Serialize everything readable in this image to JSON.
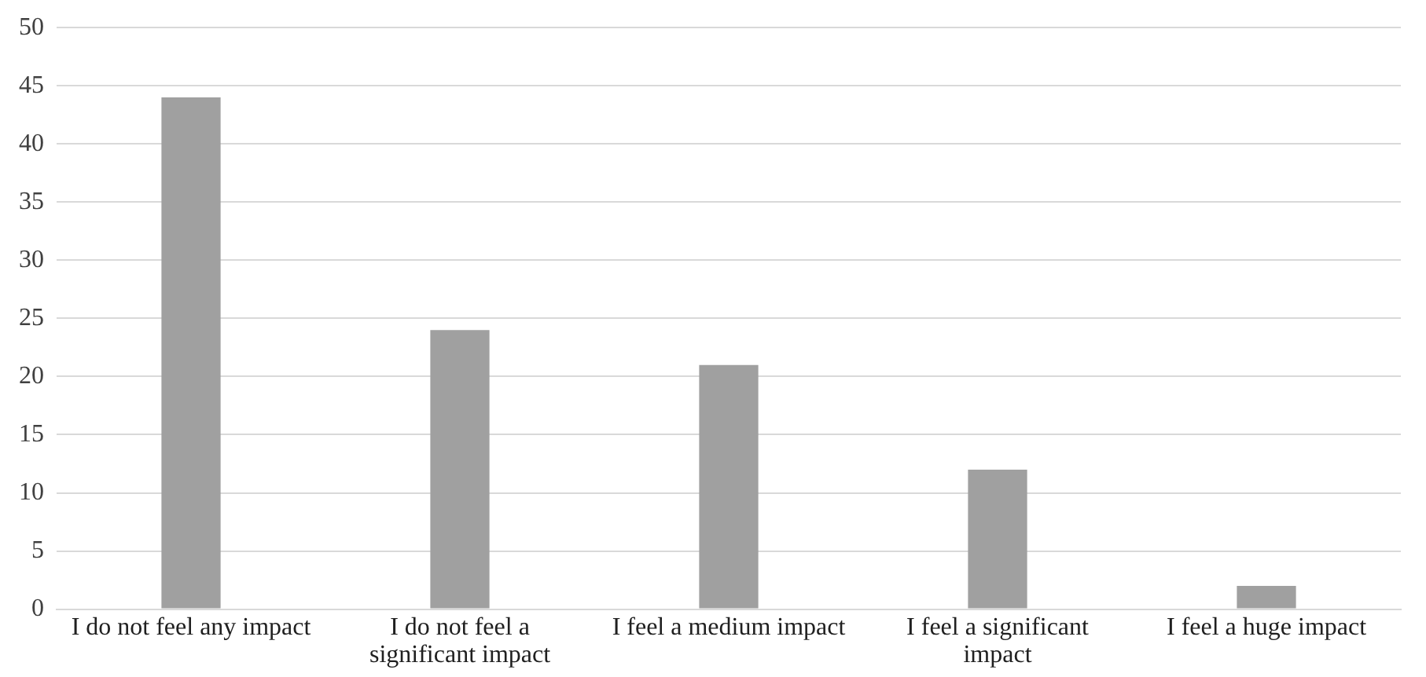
{
  "chart_data": {
    "type": "bar",
    "categories": [
      "I do not feel any impact",
      "I do not feel a significant impact",
      "I feel a medium impact",
      "I feel a significant impact",
      "I feel a huge impact"
    ],
    "values": [
      44,
      24,
      21,
      12,
      2
    ],
    "color": "#a0a0a0",
    "ylim": [
      0,
      50
    ],
    "yticks": [
      0,
      5,
      10,
      15,
      20,
      25,
      30,
      35,
      40,
      45,
      50
    ],
    "grid": "y"
  }
}
